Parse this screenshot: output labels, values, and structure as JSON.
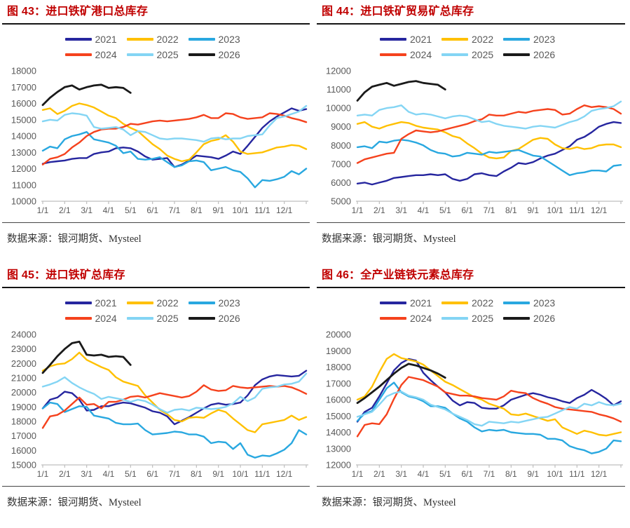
{
  "page": {
    "background": "#FFFFFF"
  },
  "style": {
    "title_color": "#C00000",
    "axis_text_color": "#595959",
    "axis_line_color": "#BFBFBF",
    "source_text_color": "#333333"
  },
  "chart_data": [
    {
      "id": "figure-43",
      "type": "line",
      "title": "图 43：进口铁矿港口总库存",
      "source": "数据来源：银河期货、Mysteel",
      "ylim": [
        10000,
        18000
      ],
      "ystep": 1000,
      "grid": false,
      "legend_position": "top",
      "x_labels": [
        "1/1",
        "2/1",
        "3/1",
        "4/1",
        "5/1",
        "6/1",
        "7/1",
        "8/1",
        "9/1",
        "10/1",
        "11/1",
        "12/1"
      ],
      "points_per_month": 3,
      "series": [
        {
          "name": "2021",
          "color": "#26269F",
          "values": [
            12300,
            12400,
            12450,
            12500,
            12600,
            12650,
            12650,
            12900,
            13000,
            13050,
            13250,
            13300,
            13250,
            13050,
            12750,
            12550,
            12600,
            12650,
            12100,
            12250,
            12500,
            12800,
            12750,
            12700,
            12600,
            12800,
            13050,
            12900,
            13400,
            13950,
            14500,
            14900,
            15200,
            15450,
            15700,
            15550,
            15650
          ]
        },
        {
          "name": "2022",
          "color": "#FFC000",
          "values": [
            15600,
            15700,
            15350,
            15550,
            15850,
            16000,
            15900,
            15750,
            15500,
            15250,
            15100,
            14750,
            14500,
            14300,
            13900,
            13500,
            13200,
            12800,
            12600,
            12450,
            12550,
            13000,
            13500,
            13700,
            13800,
            14050,
            13650,
            13050,
            12900,
            12950,
            13000,
            13150,
            13300,
            13350,
            13450,
            13400,
            13200
          ]
        },
        {
          "name": "2023",
          "color": "#29A8E0",
          "values": [
            13100,
            13350,
            13250,
            13800,
            14000,
            14100,
            14250,
            13800,
            13700,
            13600,
            13400,
            12950,
            13050,
            12600,
            12550,
            12600,
            12700,
            12400,
            12100,
            12200,
            12450,
            12500,
            12400,
            11900,
            12000,
            12100,
            11900,
            11800,
            11400,
            10850,
            11300,
            11250,
            11350,
            11500,
            11850,
            11650,
            12000
          ]
        },
        {
          "name": "2024",
          "color": "#F5421D",
          "values": [
            12250,
            12600,
            12700,
            12900,
            13300,
            13600,
            14000,
            14250,
            14400,
            14450,
            14450,
            14550,
            14750,
            14700,
            14800,
            14900,
            14950,
            14900,
            14950,
            15000,
            15050,
            15150,
            15300,
            15100,
            15100,
            15400,
            15350,
            15150,
            15050,
            15100,
            15150,
            15400,
            15350,
            15250,
            15100,
            15000,
            14850
          ]
        },
        {
          "name": "2025",
          "color": "#84D5F4",
          "values": [
            14900,
            15000,
            14950,
            15300,
            15400,
            15350,
            15250,
            14550,
            14450,
            14500,
            14550,
            14400,
            14050,
            14300,
            14250,
            14050,
            13850,
            13800,
            13850,
            13850,
            13800,
            13750,
            13650,
            13850,
            13900,
            13800,
            13850,
            13850,
            14000,
            14050,
            14100,
            14650,
            15100,
            15200,
            15350,
            15500,
            15850
          ]
        },
        {
          "name": "2026",
          "color": "#1A1A1A",
          "values": [
            15900,
            16350,
            16700,
            17000,
            17100,
            16850,
            17000,
            17100,
            17150,
            16950,
            17000,
            16950,
            16650
          ]
        }
      ]
    },
    {
      "id": "figure-44",
      "type": "line",
      "title": "图 44：进口铁矿贸易矿总库存",
      "source": "数据来源：银河期货、Mysteel",
      "ylim": [
        5000,
        12000
      ],
      "ystep": 1000,
      "grid": false,
      "legend_position": "top",
      "x_labels": [
        "1/1",
        "2/1",
        "3/1",
        "4/1",
        "5/1",
        "6/1",
        "7/1",
        "8/1",
        "9/1",
        "10/1",
        "11/1",
        "12/1"
      ],
      "points_per_month": 3,
      "series": [
        {
          "name": "2021",
          "color": "#26269F",
          "values": [
            5950,
            6000,
            5900,
            6000,
            6100,
            6250,
            6300,
            6350,
            6400,
            6400,
            6450,
            6400,
            6450,
            6200,
            6100,
            6200,
            6450,
            6500,
            6400,
            6350,
            6600,
            6800,
            7050,
            7000,
            7100,
            7300,
            7450,
            7550,
            7750,
            7950,
            8300,
            8450,
            8700,
            9000,
            9150,
            9250,
            9200
          ]
        },
        {
          "name": "2022",
          "color": "#FFC000",
          "values": [
            9150,
            9250,
            9000,
            8900,
            9050,
            9150,
            9250,
            9200,
            9050,
            8950,
            8900,
            8850,
            8700,
            8500,
            8400,
            8100,
            7850,
            7550,
            7350,
            7300,
            7350,
            7700,
            7800,
            8050,
            8300,
            8400,
            8350,
            8050,
            7850,
            7800,
            7900,
            7800,
            7850,
            8000,
            8050,
            8050,
            7900
          ]
        },
        {
          "name": "2023",
          "color": "#29A8E0",
          "values": [
            7900,
            7950,
            7850,
            8200,
            8150,
            8250,
            8300,
            8250,
            8150,
            8000,
            7750,
            7600,
            7550,
            7400,
            7450,
            7600,
            7550,
            7500,
            7650,
            7600,
            7650,
            7700,
            7750,
            7600,
            7450,
            7400,
            7150,
            6900,
            6650,
            6400,
            6500,
            6550,
            6650,
            6650,
            6600,
            6900,
            6950
          ]
        },
        {
          "name": "2024",
          "color": "#F5421D",
          "values": [
            7050,
            7250,
            7350,
            7450,
            7550,
            7600,
            8350,
            8600,
            8800,
            8750,
            8700,
            8750,
            8850,
            8950,
            9050,
            9150,
            9300,
            9400,
            9650,
            9600,
            9600,
            9700,
            9800,
            9750,
            9850,
            9900,
            9950,
            9900,
            9650,
            9700,
            9950,
            10150,
            10050,
            10100,
            10050,
            9950,
            9700
          ]
        },
        {
          "name": "2025",
          "color": "#84D5F4",
          "values": [
            9600,
            9650,
            9600,
            9900,
            10000,
            10050,
            10150,
            9800,
            9650,
            9700,
            9650,
            9550,
            9450,
            9550,
            9600,
            9550,
            9400,
            9250,
            9300,
            9150,
            9050,
            9000,
            8950,
            8900,
            9000,
            9050,
            9000,
            8950,
            9100,
            9250,
            9350,
            9550,
            9850,
            9950,
            10000,
            10100,
            10350
          ]
        },
        {
          "name": "2026",
          "color": "#1A1A1A",
          "values": [
            10400,
            10850,
            11150,
            11250,
            11350,
            11200,
            11300,
            11400,
            11450,
            11350,
            11300,
            11250,
            11000
          ]
        }
      ]
    },
    {
      "id": "figure-45",
      "type": "line",
      "title": "图 45：进口铁矿总库存",
      "source": "数据来源：银河期货、Mysteel",
      "ylim": [
        15000,
        24000
      ],
      "ystep": 1000,
      "grid": false,
      "legend_position": "top",
      "x_labels": [
        "1/1",
        "2/1",
        "3/1",
        "4/1",
        "5/1",
        "6/1",
        "7/1",
        "8/1",
        "9/1",
        "10/1",
        "11/1",
        "12/1"
      ],
      "points_per_month": 3,
      "series": [
        {
          "name": "2021",
          "color": "#26269F",
          "values": [
            18900,
            19500,
            19650,
            20050,
            19950,
            19500,
            18750,
            18800,
            19050,
            19050,
            19200,
            19300,
            19250,
            19100,
            18950,
            18700,
            18600,
            18350,
            17800,
            18050,
            18300,
            18600,
            18900,
            19150,
            19250,
            19150,
            19200,
            19300,
            19800,
            20500,
            20900,
            21100,
            21200,
            21150,
            21100,
            21150,
            21500
          ]
        },
        {
          "name": "2022",
          "color": "#FFC000",
          "values": [
            21500,
            21800,
            21950,
            22000,
            22300,
            22750,
            22250,
            22000,
            21750,
            21550,
            21050,
            20750,
            20600,
            20450,
            19800,
            19300,
            18800,
            18500,
            18100,
            18000,
            18250,
            18300,
            18250,
            18550,
            18800,
            18650,
            18200,
            17800,
            17400,
            17250,
            17800,
            17900,
            18000,
            18100,
            18400,
            18100,
            18300
          ]
        },
        {
          "name": "2023",
          "color": "#29A8E0",
          "values": [
            18900,
            19300,
            19200,
            18650,
            18850,
            19050,
            19000,
            18400,
            18300,
            18200,
            17900,
            17800,
            17800,
            17850,
            17400,
            17100,
            17150,
            17200,
            17300,
            17250,
            17100,
            17100,
            16950,
            16500,
            16600,
            16550,
            16100,
            16500,
            15700,
            15500,
            15650,
            15600,
            15800,
            16050,
            16500,
            17400,
            17100
          ]
        },
        {
          "name": "2024",
          "color": "#F5421D",
          "values": [
            17550,
            18350,
            18450,
            18750,
            19200,
            19650,
            19150,
            19200,
            18900,
            19350,
            19350,
            19500,
            19700,
            19750,
            19650,
            19800,
            19950,
            19850,
            19750,
            19650,
            19750,
            20050,
            20500,
            20200,
            20100,
            20150,
            20450,
            20350,
            20300,
            20350,
            20400,
            20450,
            20400,
            20450,
            20350,
            20150,
            19900
          ]
        },
        {
          "name": "2025",
          "color": "#84D5F4",
          "values": [
            20400,
            20550,
            20750,
            21050,
            20650,
            20350,
            20100,
            19900,
            19550,
            19700,
            19600,
            19500,
            19350,
            19500,
            19400,
            19150,
            18850,
            18600,
            18800,
            18850,
            18750,
            18950,
            18900,
            18850,
            18900,
            19000,
            19250,
            19700,
            19400,
            19650,
            20250,
            20350,
            20400,
            20550,
            20600,
            20750,
            21300
          ]
        },
        {
          "name": "2026",
          "color": "#1A1A1A",
          "values": [
            21350,
            21900,
            22500,
            23000,
            23400,
            23500,
            22600,
            22550,
            22600,
            22450,
            22500,
            22450,
            21900
          ]
        }
      ]
    },
    {
      "id": "figure-46",
      "type": "line",
      "title": "图 46：全产业链铁元素总库存",
      "source": "数据来源：银河期货、Mysteel",
      "ylim": [
        12000,
        20000
      ],
      "ystep": 1000,
      "grid": false,
      "legend_position": "top",
      "x_labels": [
        "1/1",
        "2/1",
        "3/1",
        "4/1",
        "5/1",
        "6/1",
        "7/1",
        "8/1",
        "9/1",
        "10/1",
        "11/1",
        "12/1"
      ],
      "points_per_month": 3,
      "series": [
        {
          "name": "2021",
          "color": "#26269F",
          "values": [
            14650,
            15250,
            15500,
            16200,
            17000,
            17800,
            18250,
            18500,
            18400,
            17650,
            17200,
            16800,
            16450,
            15950,
            15650,
            15850,
            15800,
            15500,
            15450,
            15450,
            15650,
            16000,
            16150,
            16300,
            16400,
            16300,
            16150,
            16050,
            15900,
            15800,
            16100,
            16300,
            16600,
            16350,
            16050,
            15650,
            15900
          ]
        },
        {
          "name": "2022",
          "color": "#FFC000",
          "values": [
            16000,
            16200,
            16800,
            17700,
            18500,
            18800,
            18550,
            18450,
            18350,
            18150,
            17800,
            17450,
            17100,
            16900,
            16650,
            16400,
            16150,
            16000,
            15750,
            15600,
            15450,
            15100,
            15050,
            15150,
            15000,
            14850,
            14700,
            14800,
            14300,
            14100,
            13900,
            14100,
            14000,
            13850,
            13800,
            13900,
            14000
          ]
        },
        {
          "name": "2023",
          "color": "#29A8E0",
          "values": [
            14700,
            15150,
            15300,
            16000,
            16700,
            17050,
            16450,
            16200,
            16100,
            15900,
            15600,
            15600,
            15500,
            15150,
            14850,
            14650,
            14300,
            14050,
            14150,
            14100,
            14150,
            14000,
            13950,
            13900,
            13900,
            13850,
            13600,
            13600,
            13500,
            13150,
            13000,
            12900,
            12700,
            12800,
            13000,
            13500,
            13450
          ]
        },
        {
          "name": "2024",
          "color": "#F5421D",
          "values": [
            13750,
            14450,
            14550,
            14500,
            15100,
            16050,
            16900,
            17400,
            17300,
            17200,
            17000,
            16800,
            16450,
            16350,
            16250,
            16250,
            16200,
            16100,
            16050,
            16000,
            16200,
            16550,
            16450,
            16400,
            16100,
            15900,
            15750,
            15550,
            15450,
            15400,
            15350,
            15300,
            15250,
            15100,
            15000,
            14850,
            14650
          ]
        },
        {
          "name": "2025",
          "color": "#84D5F4",
          "values": [
            14950,
            15100,
            15250,
            15700,
            16200,
            16400,
            16500,
            16250,
            16150,
            16000,
            15700,
            15550,
            15400,
            15150,
            14950,
            14750,
            14500,
            14400,
            14650,
            14600,
            14550,
            14650,
            14600,
            14700,
            14800,
            14900,
            14950,
            15150,
            15350,
            15550,
            15450,
            15750,
            15650,
            15850,
            15700,
            15650,
            15750
          ]
        },
        {
          "name": "2026",
          "color": "#1A1A1A",
          "values": [
            15800,
            16100,
            16450,
            16800,
            17200,
            17600,
            17950,
            18200,
            18100,
            17950,
            17800,
            17600,
            17350
          ]
        }
      ]
    }
  ]
}
